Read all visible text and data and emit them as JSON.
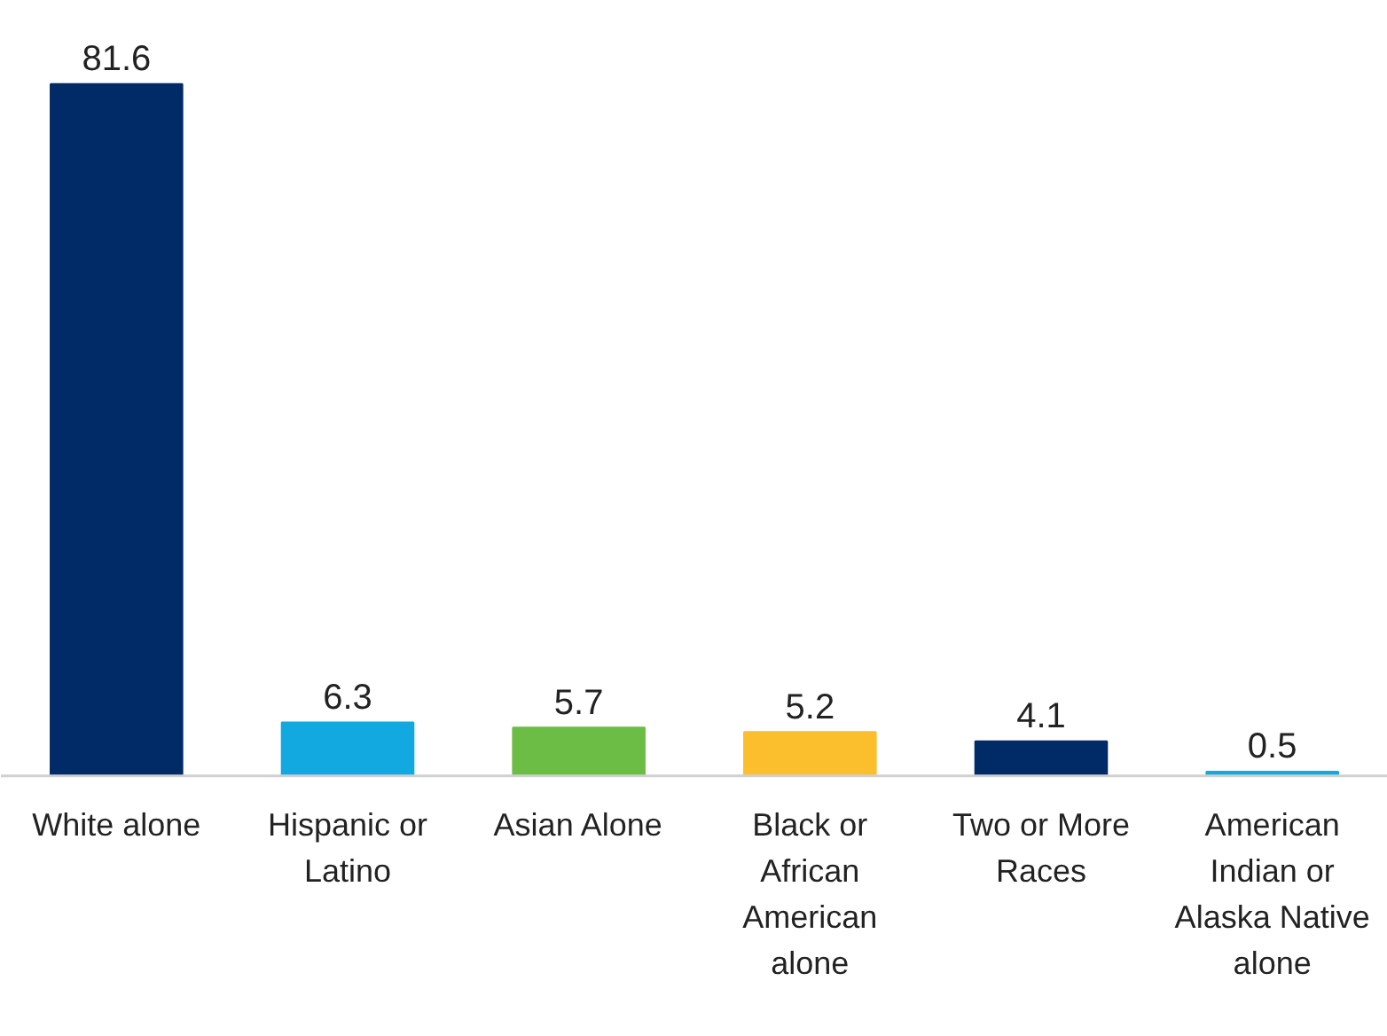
{
  "chart_data": {
    "type": "bar",
    "categories": [
      "White alone",
      "Hispanic or Latino",
      "Asian Alone",
      "Black or African American alone",
      "Two or More Races",
      "American Indian or Alaska Native alone"
    ],
    "values": [
      81.6,
      6.3,
      5.7,
      5.2,
      4.1,
      0.5
    ],
    "colors": [
      "#002b66",
      "#12a8e0",
      "#6cbd45",
      "#fbbf2e",
      "#002b66",
      "#12a8e0"
    ],
    "data_labels": true
  }
}
